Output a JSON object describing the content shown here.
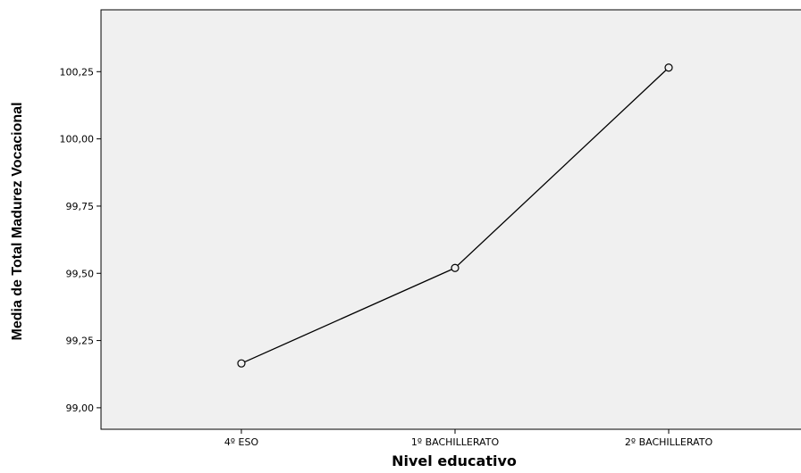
{
  "chart_data": {
    "type": "line",
    "xlabel": "Nivel educativo",
    "ylabel": "Media de Total Madurez Vocacional",
    "categories": [
      "4º ESO",
      "1º BACHILLERATO",
      "2º BACHILLERATO"
    ],
    "series": [
      {
        "values": [
          99.165,
          99.52,
          100.265
        ]
      }
    ],
    "yticks": [
      99.0,
      99.25,
      99.5,
      99.75,
      100.0,
      100.25
    ],
    "ytick_labels": [
      "99,00",
      "99,25",
      "99,50",
      "99,75",
      "100,00",
      "100,25"
    ],
    "ylim": [
      98.92,
      100.48
    ],
    "grid": false,
    "legend": "none",
    "colors": {
      "plot_background": "#f0f0f0",
      "line": "#000000",
      "marker_face": "#f0f0f0"
    }
  }
}
